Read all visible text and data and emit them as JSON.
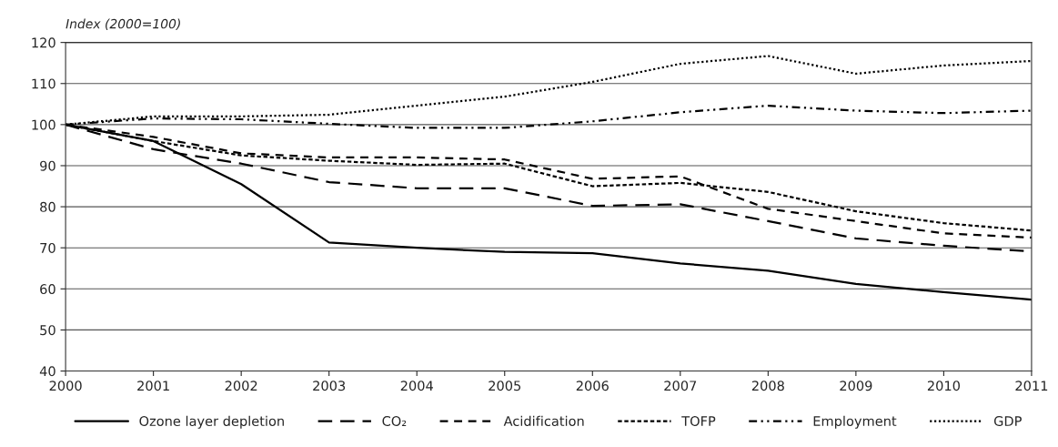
{
  "chart_data": {
    "type": "line",
    "ylabel": "Index (2000=100)",
    "x": [
      2000,
      2001,
      2002,
      2003,
      2004,
      2005,
      2006,
      2007,
      2008,
      2009,
      2010,
      2011
    ],
    "xlim": [
      2000,
      2011
    ],
    "xticks": [
      2000,
      2001,
      2002,
      2003,
      2004,
      2005,
      2006,
      2007,
      2008,
      2009,
      2010,
      2011
    ],
    "ylim": [
      40,
      120
    ],
    "yticks": [
      40,
      50,
      60,
      70,
      80,
      90,
      100,
      110,
      120
    ],
    "grid": "y",
    "legend": "bottom",
    "marker": "none",
    "series": [
      {
        "name": "Ozone layer depletion",
        "color": "#000000",
        "line_style": "solid",
        "values": [
          100,
          96,
          85.5,
          71.3,
          70,
          69,
          68.7,
          66.2,
          64.4,
          61.2,
          59.2,
          57.4
        ]
      },
      {
        "name": "CO₂",
        "color": "#000000",
        "line_style": "longdash",
        "values": [
          100,
          94,
          90.5,
          86,
          84.5,
          84.5,
          80.2,
          80.6,
          76.5,
          72.3,
          70.5,
          69.1
        ]
      },
      {
        "name": "Acidification",
        "color": "#000000",
        "line_style": "dashed",
        "values": [
          100,
          97,
          93,
          92,
          92,
          91.5,
          86.8,
          87.4,
          79.5,
          76.5,
          73.5,
          72.5
        ]
      },
      {
        "name": "TOFP",
        "color": "#000000",
        "line_style": "shortdash",
        "values": [
          100,
          96,
          92.5,
          91.2,
          90.2,
          90.5,
          85,
          85.8,
          83.6,
          78.9,
          76,
          74.2
        ]
      },
      {
        "name": "Employment",
        "color": "#000000",
        "line_style": "dashdot",
        "values": [
          100,
          101.5,
          101.3,
          100.2,
          99.2,
          99.2,
          100.8,
          103,
          104.6,
          103.4,
          102.8,
          103.4
        ]
      },
      {
        "name": "GDP",
        "color": "#000000",
        "line_style": "dotted",
        "values": [
          100,
          102,
          102,
          102.4,
          104.6,
          106.8,
          110.4,
          114.8,
          116.7,
          112.4,
          114.4,
          115.5
        ]
      }
    ]
  }
}
